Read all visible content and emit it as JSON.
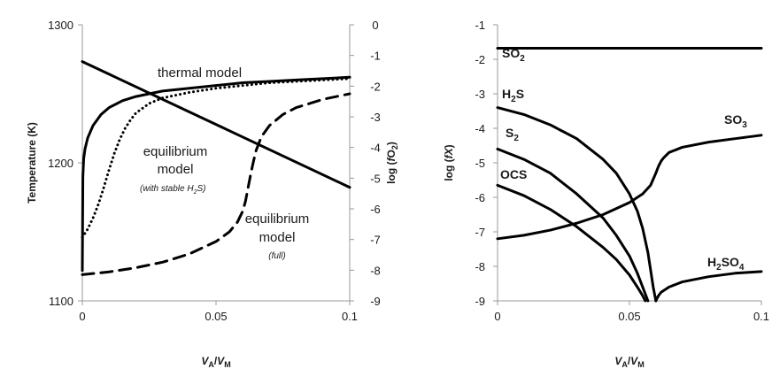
{
  "chart_data": [
    {
      "type": "line",
      "x_label": "V_A/V_M",
      "y_label": "Temperature (K)",
      "y2_label": "log (fO_2)",
      "xlim": [
        0,
        0.1
      ],
      "ylim": [
        1100,
        1300
      ],
      "y2lim": [
        -9,
        0
      ],
      "x_ticks": [
        "0",
        "0.05",
        "0.1"
      ],
      "y_ticks": [
        "1100",
        "1200",
        "1300"
      ],
      "y2_ticks": [
        "-9",
        "-8",
        "-7",
        "-6",
        "-5",
        "-4",
        "-3",
        "-2",
        "-1",
        "0"
      ],
      "annotations": {
        "thermal": "thermal model",
        "eq_stable_1": "equilibrium",
        "eq_stable_2": "model",
        "eq_stable_3": "(with stable H",
        "eq_stable_sub": "2",
        "eq_stable_4": "S)",
        "eq_full_1": "equilibrium",
        "eq_full_2": "model",
        "eq_full_3": "(full)"
      },
      "series": [
        {
          "axis": "y2",
          "style": "solid",
          "x": [
            0,
            0.1
          ],
          "y": [
            -1.2,
            -5.3
          ]
        },
        {
          "axis": "y",
          "style": "solid",
          "x": [
            0,
            0.0002,
            0.0005,
            0.001,
            0.002,
            0.004,
            0.007,
            0.01,
            0.015,
            0.02,
            0.03,
            0.04,
            0.05,
            0.06,
            0.07,
            0.08,
            0.09,
            0.1
          ],
          "y": [
            1122,
            1190,
            1203,
            1210,
            1218,
            1227,
            1235,
            1240,
            1245,
            1248,
            1252,
            1254,
            1256,
            1258,
            1259,
            1260,
            1261,
            1262
          ]
        },
        {
          "axis": "y",
          "style": "dotted",
          "x": [
            0,
            0.002,
            0.004,
            0.006,
            0.008,
            0.01,
            0.012,
            0.014,
            0.016,
            0.018,
            0.02,
            0.025,
            0.03,
            0.04,
            0.05,
            0.06,
            0.07,
            0.08,
            0.09,
            0.1
          ],
          "y": [
            1146,
            1152,
            1160,
            1170,
            1182,
            1195,
            1207,
            1217,
            1225,
            1231,
            1236,
            1243,
            1247,
            1251,
            1254,
            1256,
            1258,
            1259,
            1260,
            1261
          ]
        },
        {
          "axis": "y",
          "style": "dashed",
          "x": [
            0,
            0.01,
            0.02,
            0.03,
            0.04,
            0.05,
            0.055,
            0.058,
            0.06,
            0.061,
            0.062,
            0.063,
            0.064,
            0.065,
            0.067,
            0.07,
            0.075,
            0.08,
            0.09,
            0.1
          ],
          "y": [
            1119,
            1121,
            1124,
            1128,
            1134,
            1143,
            1150,
            1157,
            1165,
            1172,
            1182,
            1192,
            1201,
            1209,
            1219,
            1227,
            1235,
            1240,
            1246,
            1250
          ]
        }
      ]
    },
    {
      "type": "line",
      "x_label": "V_A/V_M",
      "y_label": "log (fX)",
      "xlim": [
        0,
        0.1
      ],
      "ylim": [
        -9,
        -1
      ],
      "x_ticks": [
        "0",
        "0.05",
        "0.1"
      ],
      "y_ticks": [
        "-9",
        "-8",
        "-7",
        "-6",
        "-5",
        "-4",
        "-3",
        "-2",
        "-1"
      ],
      "series": [
        {
          "name": "SO2",
          "label": "SO",
          "sub": "2",
          "x": [
            0,
            0.1
          ],
          "y": [
            -1.68,
            -1.68
          ]
        },
        {
          "name": "H2S",
          "label_pre": "H",
          "sub": "2",
          "label_post": "S",
          "x": [
            0,
            0.01,
            0.02,
            0.03,
            0.04,
            0.045,
            0.05,
            0.053,
            0.055,
            0.057,
            0.058,
            0.059,
            0.06
          ],
          "y": [
            -3.4,
            -3.6,
            -3.9,
            -4.3,
            -4.9,
            -5.3,
            -5.9,
            -6.4,
            -6.9,
            -7.6,
            -8.1,
            -8.6,
            -9.0
          ]
        },
        {
          "name": "S2",
          "label": "S",
          "sub": "2",
          "x": [
            0,
            0.01,
            0.02,
            0.03,
            0.04,
            0.045,
            0.05,
            0.053,
            0.055,
            0.057
          ],
          "y": [
            -4.6,
            -4.9,
            -5.3,
            -5.9,
            -6.6,
            -7.1,
            -7.7,
            -8.2,
            -8.6,
            -9.0
          ]
        },
        {
          "name": "OCS",
          "label": "OCS",
          "x": [
            0,
            0.01,
            0.02,
            0.03,
            0.04,
            0.045,
            0.05,
            0.053,
            0.055,
            0.056
          ],
          "y": [
            -5.65,
            -5.95,
            -6.35,
            -6.85,
            -7.45,
            -7.8,
            -8.25,
            -8.6,
            -8.85,
            -9.0
          ]
        },
        {
          "name": "SO3",
          "label": "SO",
          "sub": "3",
          "x": [
            0,
            0.01,
            0.02,
            0.03,
            0.04,
            0.05,
            0.055,
            0.058,
            0.06,
            0.061,
            0.062,
            0.063,
            0.065,
            0.07,
            0.08,
            0.09,
            0.1
          ],
          "y": [
            -7.2,
            -7.1,
            -6.95,
            -6.75,
            -6.5,
            -6.15,
            -5.9,
            -5.65,
            -5.3,
            -5.1,
            -4.95,
            -4.85,
            -4.7,
            -4.55,
            -4.4,
            -4.3,
            -4.2
          ]
        },
        {
          "name": "H2SO4",
          "label_pre": "H",
          "sub": "2",
          "label_post": "SO",
          "sub2": "4",
          "x": [
            0.06,
            0.0605,
            0.061,
            0.062,
            0.065,
            0.07,
            0.08,
            0.09,
            0.1
          ],
          "y": [
            -9.0,
            -8.92,
            -8.85,
            -8.75,
            -8.6,
            -8.45,
            -8.3,
            -8.2,
            -8.15
          ]
        }
      ]
    }
  ]
}
